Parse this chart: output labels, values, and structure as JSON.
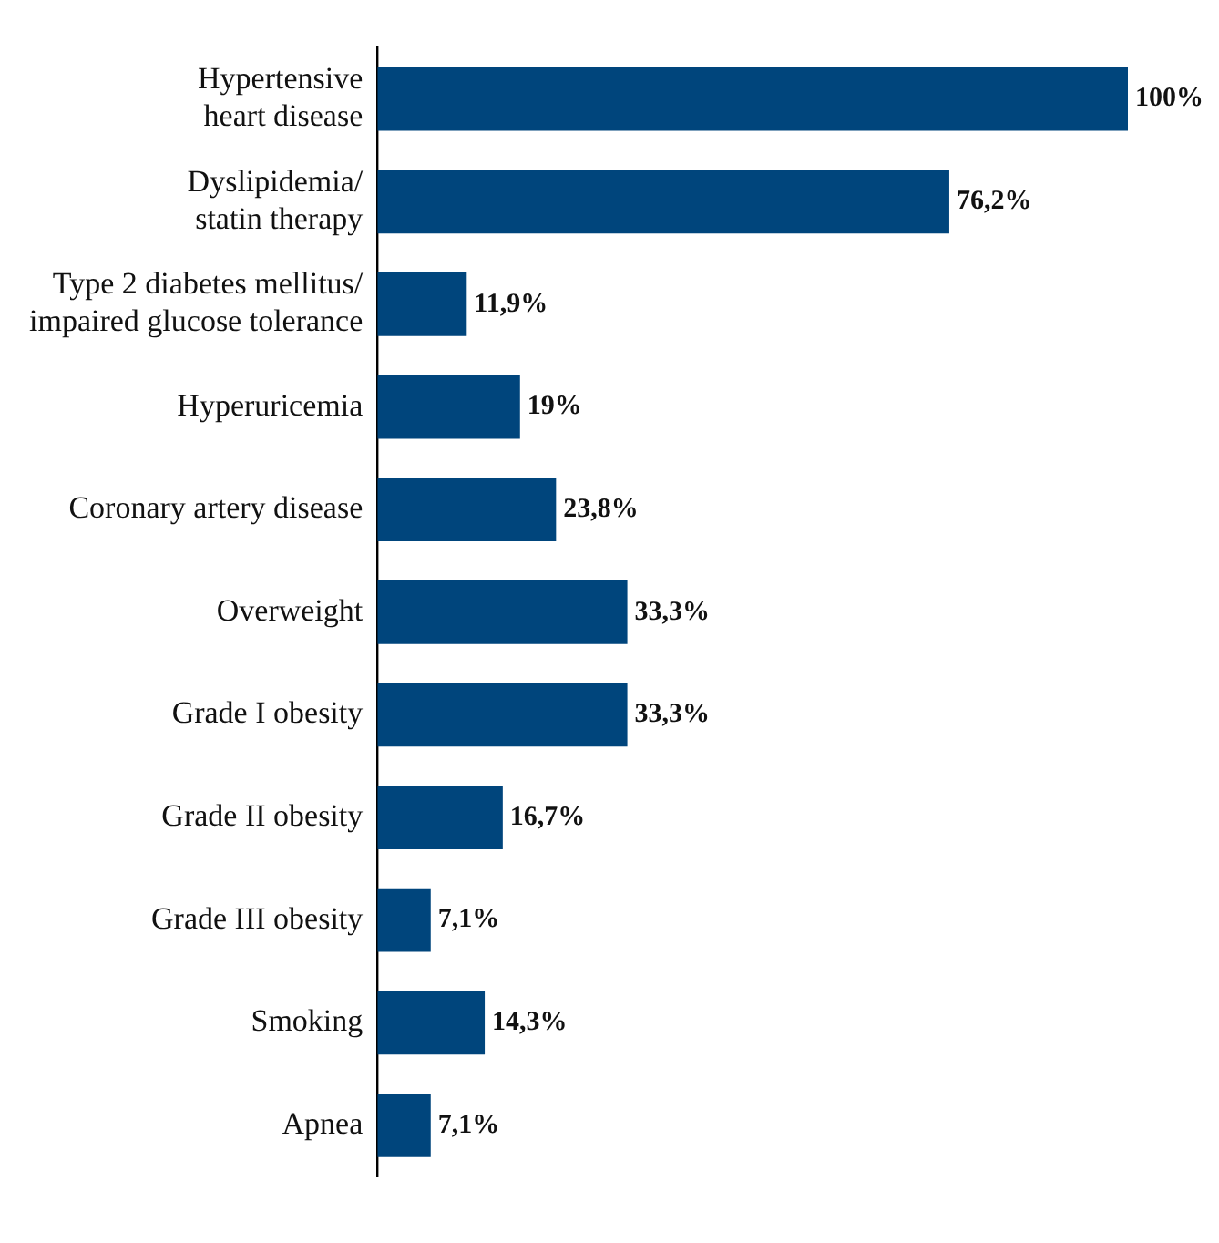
{
  "chart_data": {
    "type": "bar",
    "orientation": "horizontal",
    "categories": [
      "Hypertensive\nheart disease",
      "Dyslipidemia/\nstatin therapy",
      "Type 2 diabetes mellitus/\nimpaired glucose tolerance",
      "Hyperuricemia",
      "Coronary artery disease",
      "Overweight",
      "Grade I obesity",
      "Grade II obesity",
      "Grade III obesity",
      "Smoking",
      "Apnea"
    ],
    "values": [
      100,
      76.2,
      11.9,
      19,
      23.8,
      33.3,
      33.3,
      16.7,
      7.1,
      14.3,
      7.1
    ],
    "value_labels": [
      "100%",
      "76,2%",
      "11,9%",
      "19%",
      "23,8%",
      "33,3%",
      "33,3%",
      "16,7%",
      "7,1%",
      "14,3%",
      "7,1%"
    ],
    "color": "#00457c",
    "xlim": [
      0,
      100
    ],
    "tick_labels": "y",
    "grid": false,
    "legend": false
  }
}
